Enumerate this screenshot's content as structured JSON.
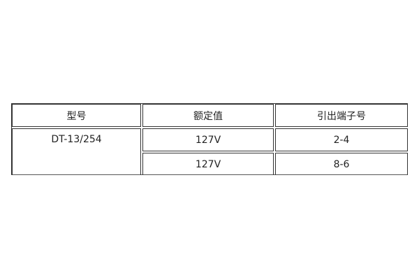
{
  "table": {
    "headers": [
      "型号",
      "额定值",
      "引出端子号"
    ],
    "model": "DT-13/254",
    "rows": [
      {
        "rating": "127V",
        "terminals": "2-4"
      },
      {
        "rating": "127V",
        "terminals": "8-6"
      }
    ]
  }
}
